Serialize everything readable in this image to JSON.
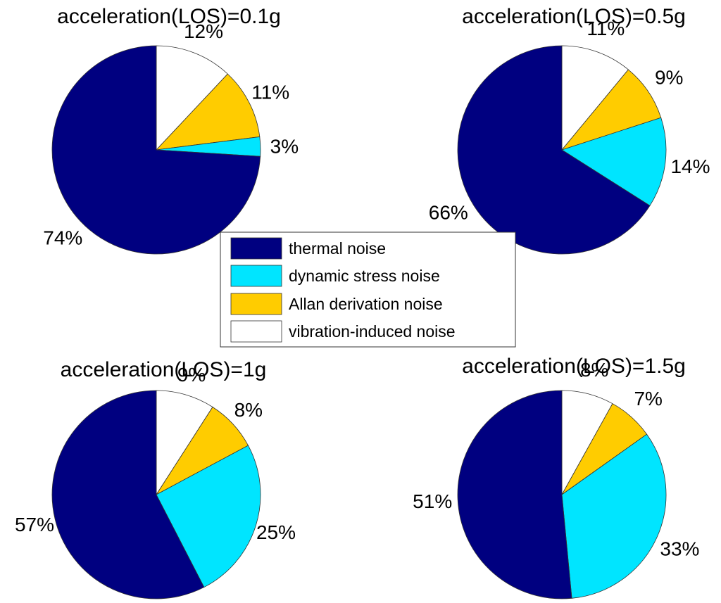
{
  "chart_data": {
    "type": "pie",
    "legend": {
      "placement": "center",
      "entries": [
        "thermal noise",
        "dynamic stress noise",
        "Allan derivation noise",
        "vibration-induced noise"
      ]
    },
    "colors": {
      "thermal noise": "#000080",
      "dynamic stress noise": "#00E5FF",
      "Allan derivation noise": "#FFCC00",
      "vibration-induced noise": "#FFFFFF"
    },
    "charts": [
      {
        "title": "acceleration(LOS)=0.1g",
        "slices": [
          {
            "category": "vibration-induced noise",
            "value": 12,
            "label": "12%"
          },
          {
            "category": "Allan derivation noise",
            "value": 11,
            "label": "11%"
          },
          {
            "category": "dynamic stress noise",
            "value": 3,
            "label": "3%"
          },
          {
            "category": "thermal noise",
            "value": 74,
            "label": "74%"
          }
        ]
      },
      {
        "title": "acceleration(LOS)=0.5g",
        "slices": [
          {
            "category": "vibration-induced noise",
            "value": 11,
            "label": "11%"
          },
          {
            "category": "Allan derivation noise",
            "value": 9,
            "label": "9%"
          },
          {
            "category": "dynamic stress noise",
            "value": 14,
            "label": "14%"
          },
          {
            "category": "thermal noise",
            "value": 66,
            "label": "66%"
          }
        ]
      },
      {
        "title": "acceleration(LOS)=1g",
        "slices": [
          {
            "category": "vibration-induced noise",
            "value": 9,
            "label": "9%"
          },
          {
            "category": "Allan derivation noise",
            "value": 8,
            "label": "8%"
          },
          {
            "category": "dynamic stress noise",
            "value": 25,
            "label": "25%"
          },
          {
            "category": "thermal noise",
            "value": 57,
            "label": "57%"
          }
        ]
      },
      {
        "title": "acceleration(LOS)=1.5g",
        "slices": [
          {
            "category": "vibration-induced noise",
            "value": 8,
            "label": "8%"
          },
          {
            "category": "Allan derivation noise",
            "value": 7,
            "label": "7%"
          },
          {
            "category": "dynamic stress noise",
            "value": 33,
            "label": "33%"
          },
          {
            "category": "thermal noise",
            "value": 51,
            "label": "51%"
          }
        ]
      }
    ]
  }
}
